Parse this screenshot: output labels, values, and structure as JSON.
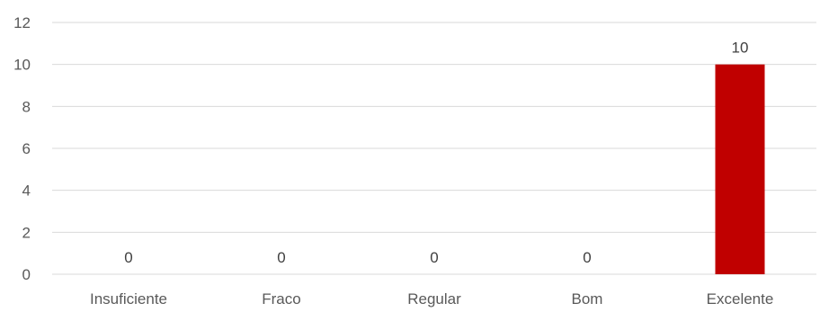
{
  "chart_data": {
    "type": "bar",
    "categories": [
      "Insuficiente",
      "Fraco",
      "Regular",
      "Bom",
      "Excelente"
    ],
    "values": [
      0,
      0,
      0,
      0,
      10
    ],
    "data_labels": [
      "0",
      "0",
      "0",
      "0",
      "10"
    ],
    "ylim": [
      0,
      12
    ],
    "yticks": [
      "0",
      "2",
      "4",
      "6",
      "8",
      "10",
      "12"
    ],
    "grid": true,
    "bar_color": "#c00000",
    "grid_color": "#d9d9d9"
  }
}
